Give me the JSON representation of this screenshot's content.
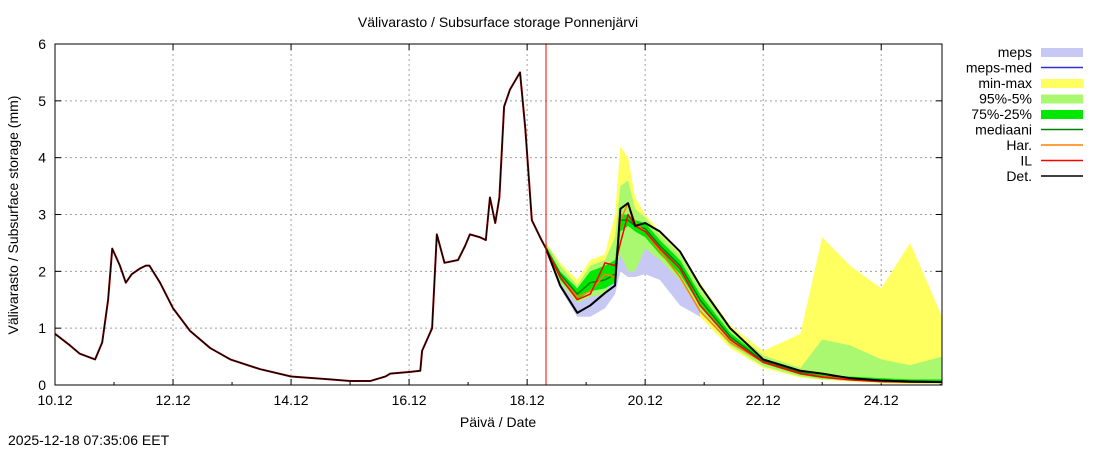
{
  "chart_data": {
    "type": "line",
    "title": "Välivarasto / Subsurface storage  Ponnenjärvi",
    "xlabel": "Päivä / Date",
    "ylabel": "Välivarasto / Subsurface storage (mm)",
    "timestamp": "2025-12-18 07:35:06 EET",
    "xlim": [
      0,
      15.03
    ],
    "ylim": [
      0,
      6
    ],
    "x_unit": "days since 10.12",
    "xticks": [
      {
        "v": 0,
        "label": "10.12"
      },
      {
        "v": 2,
        "label": "12.12"
      },
      {
        "v": 4,
        "label": "14.12"
      },
      {
        "v": 6,
        "label": "16.12"
      },
      {
        "v": 8,
        "label": "18.12"
      },
      {
        "v": 10,
        "label": "20.12"
      },
      {
        "v": 12,
        "label": "22.12"
      },
      {
        "v": 14,
        "label": "24.12"
      }
    ],
    "yticks": [
      0,
      1,
      2,
      3,
      4,
      5,
      6
    ],
    "grid": true,
    "forecast_start": 8.32,
    "legend_position": "right",
    "legend": [
      {
        "key": "meps",
        "label": "meps",
        "color": "#c8c8f5",
        "kind": "band"
      },
      {
        "key": "meps_med",
        "label": "meps-med",
        "color": "#3030d0",
        "kind": "line"
      },
      {
        "key": "minmax",
        "label": "min-max",
        "color": "#ffff60",
        "kind": "band"
      },
      {
        "key": "p95_5",
        "label": "95%-5%",
        "color": "#aaf870",
        "kind": "band"
      },
      {
        "key": "p75_25",
        "label": "75%-25%",
        "color": "#00e800",
        "kind": "band"
      },
      {
        "key": "median",
        "label": "mediaani",
        "color": "#008000",
        "kind": "line"
      },
      {
        "key": "har",
        "label": "Har.",
        "color": "#ff8000",
        "kind": "line"
      },
      {
        "key": "il",
        "label": "IL",
        "color": "#ff0000",
        "kind": "line"
      },
      {
        "key": "det",
        "label": "Det.",
        "color": "#000000",
        "kind": "line"
      }
    ],
    "history": {
      "x": [
        0,
        0.25,
        0.42,
        0.68,
        0.8,
        0.9,
        0.97,
        1.1,
        1.2,
        1.3,
        1.44,
        1.54,
        1.6,
        1.78,
        2.0,
        2.29,
        2.63,
        2.97,
        3.47,
        4.0,
        4.66,
        5.0,
        5.34,
        5.6,
        5.68,
        6.02,
        6.19,
        6.22,
        6.39,
        6.47,
        6.6,
        6.83,
        6.95,
        7.03,
        7.2,
        7.3,
        7.37,
        7.46,
        7.53,
        7.61,
        7.71,
        7.88,
        7.97,
        8.08,
        8.22,
        8.32
      ],
      "y": [
        0.9,
        0.7,
        0.55,
        0.45,
        0.75,
        1.5,
        2.4,
        2.1,
        1.8,
        1.95,
        2.05,
        2.1,
        2.1,
        1.8,
        1.35,
        0.95,
        0.65,
        0.45,
        0.28,
        0.15,
        0.1,
        0.07,
        0.07,
        0.15,
        0.2,
        0.23,
        0.25,
        0.6,
        1.0,
        2.65,
        2.15,
        2.2,
        2.45,
        2.65,
        2.6,
        2.55,
        3.3,
        2.85,
        3.3,
        4.9,
        5.2,
        5.5,
        4.5,
        2.9,
        2.6,
        2.4
      ]
    },
    "forecast": {
      "x": [
        8.32,
        8.56,
        8.85,
        9.07,
        9.32,
        9.49,
        9.58,
        9.71,
        9.83,
        10.0,
        10.25,
        10.59,
        10.93,
        11.44,
        12.0,
        12.63,
        13.0,
        13.47,
        14.0,
        14.49,
        15.03
      ],
      "det": [
        2.4,
        1.75,
        1.27,
        1.4,
        1.62,
        1.75,
        3.1,
        3.2,
        2.8,
        2.85,
        2.7,
        2.35,
        1.75,
        1.0,
        0.45,
        0.25,
        0.2,
        0.12,
        0.08,
        0.06,
        0.05
      ],
      "il": [
        2.4,
        1.9,
        1.5,
        1.6,
        2.15,
        2.1,
        2.5,
        3.0,
        2.8,
        2.7,
        2.4,
        2.05,
        1.4,
        0.8,
        0.4,
        0.2,
        0.14,
        0.09,
        0.06,
        0.05,
        0.05
      ],
      "har": [
        2.4,
        1.9,
        1.55,
        1.65,
        1.95,
        1.9,
        2.9,
        3.2,
        2.85,
        2.7,
        2.35,
        1.9,
        1.3,
        0.75,
        0.4,
        0.2,
        0.15,
        0.1,
        0.07,
        0.06,
        0.05
      ],
      "median": [
        2.4,
        1.95,
        1.6,
        1.8,
        1.85,
        1.95,
        2.9,
        2.9,
        2.8,
        2.75,
        2.45,
        2.1,
        1.5,
        0.85,
        0.42,
        0.22,
        0.15,
        0.12,
        0.08,
        0.07,
        0.06
      ],
      "p25": [
        2.4,
        1.85,
        1.5,
        1.65,
        1.7,
        1.8,
        2.7,
        2.8,
        2.7,
        2.6,
        2.3,
        1.95,
        1.4,
        0.78,
        0.38,
        0.18,
        0.12,
        0.08,
        0.05,
        0.04,
        0.04
      ],
      "p75": [
        2.45,
        2.0,
        1.7,
        2.0,
        2.1,
        2.2,
        3.0,
        3.0,
        2.9,
        2.85,
        2.55,
        2.2,
        1.6,
        0.92,
        0.46,
        0.25,
        0.18,
        0.15,
        0.12,
        0.1,
        0.1
      ],
      "p5": [
        2.35,
        1.8,
        1.45,
        1.55,
        1.6,
        2.0,
        2.3,
        2.0,
        2.0,
        2.4,
        2.2,
        1.85,
        1.3,
        0.7,
        0.33,
        0.15,
        0.1,
        0.07,
        0.04,
        0.03,
        0.03
      ],
      "p95": [
        2.5,
        2.1,
        1.75,
        2.1,
        2.2,
        2.6,
        3.5,
        3.6,
        3.1,
        2.95,
        2.65,
        2.3,
        1.7,
        1.0,
        0.52,
        0.3,
        0.8,
        0.7,
        0.45,
        0.35,
        0.5
      ],
      "min": [
        2.35,
        1.75,
        1.4,
        1.5,
        1.6,
        1.8,
        2.0,
        1.9,
        1.9,
        2.0,
        1.9,
        1.7,
        1.2,
        0.65,
        0.3,
        0.13,
        0.09,
        0.06,
        0.03,
        0.02,
        0.02
      ],
      "max": [
        2.5,
        2.15,
        1.85,
        2.2,
        2.3,
        3.0,
        4.2,
        4.0,
        3.3,
        3.0,
        2.7,
        2.35,
        1.8,
        1.05,
        0.6,
        0.9,
        2.6,
        2.1,
        1.7,
        2.5,
        1.2
      ]
    },
    "meps": {
      "x": [
        8.32,
        8.56,
        8.85,
        9.07,
        9.32,
        9.49,
        9.58,
        9.71,
        9.83,
        10.0,
        10.25,
        10.59,
        10.93
      ],
      "min": [
        2.35,
        1.7,
        1.2,
        1.2,
        1.35,
        1.6,
        2.0,
        1.9,
        1.9,
        1.95,
        1.85,
        1.4,
        1.2
      ],
      "max": [
        2.45,
        1.9,
        1.5,
        1.6,
        1.8,
        2.0,
        2.6,
        2.5,
        2.4,
        2.5,
        2.3,
        2.0,
        1.5
      ]
    }
  }
}
